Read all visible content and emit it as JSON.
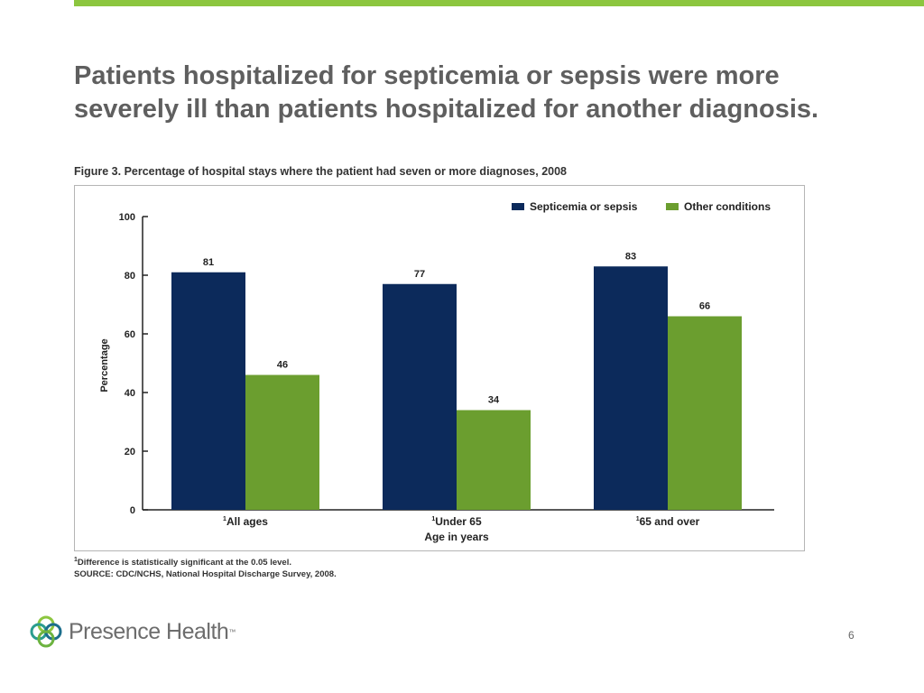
{
  "slide": {
    "title": "Patients hospitalized for septicemia or sepsis were more severely ill than patients hospitalized for another diagnosis.",
    "page_number": "6",
    "accent_color": "#8cc63f"
  },
  "figure": {
    "caption": "Figure 3. Percentage of hospital stays where the patient had seven or more diagnoses, 2008",
    "footnote_marker": "1",
    "footnote_text": "Difference is statistically significant at the 0.05 level.",
    "source": "SOURCE: CDC/NCHS, National Hospital Discharge Survey, 2008."
  },
  "logo": {
    "text": "Presence Health",
    "tm": "™",
    "icon": "interlocking-rings-icon"
  },
  "chart_data": {
    "type": "bar",
    "title": "Figure 3. Percentage of hospital stays where the patient had seven or more diagnoses, 2008",
    "categories": [
      "All ages",
      "Under 65",
      "65 and over"
    ],
    "category_marker": "1",
    "series": [
      {
        "name": "Septicemia or sepsis",
        "values": [
          81,
          77,
          83
        ],
        "color": "#0c2a5b"
      },
      {
        "name": "Other conditions",
        "values": [
          46,
          34,
          66
        ],
        "color": "#6b9e2f"
      }
    ],
    "xlabel": "Age in years",
    "ylabel": "Percentage",
    "ylim": [
      0,
      100
    ],
    "yticks": [
      0,
      20,
      40,
      60,
      80,
      100
    ],
    "grid": false,
    "legend": "top-right",
    "data_labels": true
  }
}
